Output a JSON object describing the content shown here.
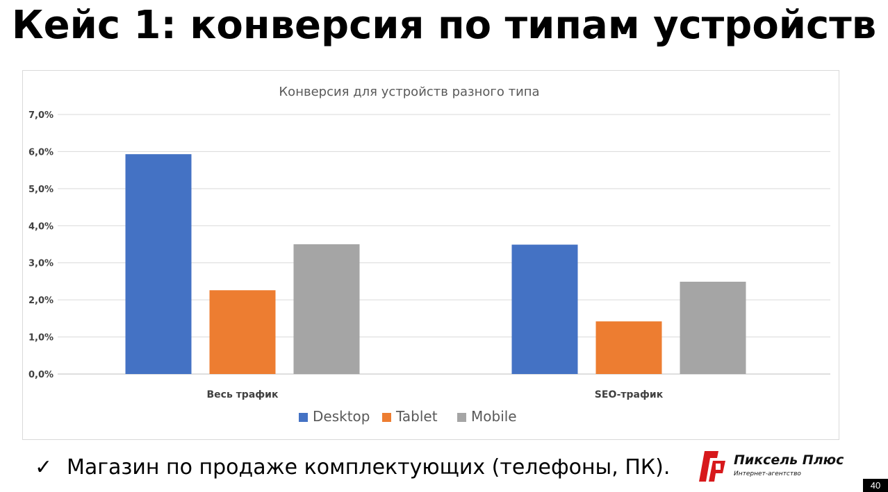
{
  "slide": {
    "title": "Кейс 1: конверсия по типам устройств",
    "bullet": "Магазин по продаже комплектующих (телефоны, ПК).",
    "bullet_icon": "checkmark-icon",
    "page_number": "40"
  },
  "logo": {
    "name": "Пиксель Плюс",
    "tagline": "Интернет-агентство",
    "mark_color": "#d7191c"
  },
  "chart_data": {
    "type": "bar",
    "title": "Конверсия для устройств разного типа",
    "categories": [
      "Весь трафик",
      "SEO-трафик"
    ],
    "series": [
      {
        "name": "Desktop",
        "color": "#4472c4",
        "values": [
          5.93,
          3.49
        ]
      },
      {
        "name": "Tablet",
        "color": "#ed7d31",
        "values": [
          2.26,
          1.42
        ]
      },
      {
        "name": "Mobile",
        "color": "#a5a5a5",
        "values": [
          3.5,
          2.49
        ]
      }
    ],
    "ylim": [
      0,
      7
    ],
    "yticks": [
      0,
      1,
      2,
      3,
      4,
      5,
      6,
      7
    ],
    "ytick_labels": [
      "0,0%",
      "1,0%",
      "2,0%",
      "3,0%",
      "4,0%",
      "5,0%",
      "6,0%",
      "7,0%"
    ],
    "xlabel": "",
    "ylabel": "",
    "grid": true,
    "legend_position": "bottom"
  }
}
